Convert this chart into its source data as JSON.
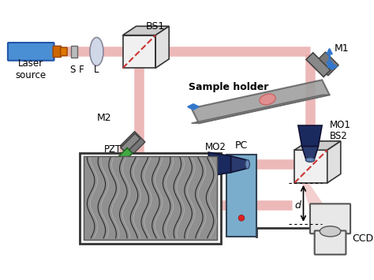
{
  "bg_color": "#ffffff",
  "beam_color": "#e8a0a0",
  "beam_lw": 9,
  "label_fontsize": 8.5,
  "components": {
    "laser_label": "Laser\nsource",
    "SF_label": "S F",
    "L_label": "L",
    "BS1_label": "BS1",
    "M1_label": "M1",
    "sample_label": "Sample holder",
    "MO1_label": "MO1",
    "BS2_label": "BS2",
    "MO2_label": "MO2",
    "M2_label": "M2",
    "PZT_label": "PZT",
    "PC_label": "PC",
    "CCD_label": "CCD",
    "d_label": "d"
  }
}
